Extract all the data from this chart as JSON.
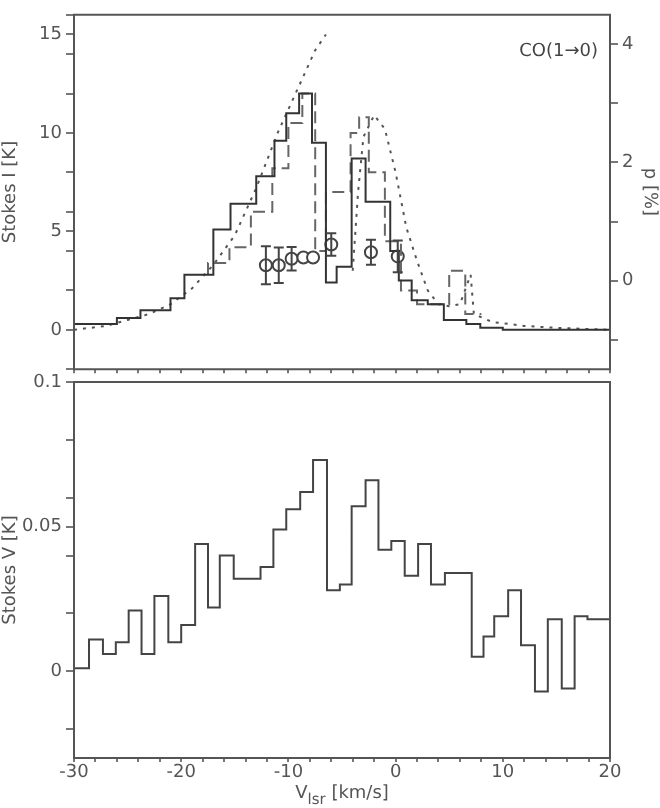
{
  "chart_data": [
    {
      "type": "step",
      "xlim": [
        -30,
        20
      ],
      "xticks": [
        -30,
        {
          "value": -28,
          "label": null
        },
        {
          "value": -26,
          "label": null
        },
        {
          "value": -24,
          "label": null
        },
        {
          "value": -22,
          "label": null
        },
        -20,
        {
          "value": -18,
          "label": null
        },
        {
          "value": -16,
          "label": null
        },
        {
          "value": -14,
          "label": null
        },
        {
          "value": -12,
          "label": null
        },
        -10,
        {
          "value": -8,
          "label": null
        },
        {
          "value": -6,
          "label": null
        },
        {
          "value": -4,
          "label": null
        },
        {
          "value": -2,
          "label": null
        },
        0,
        {
          "value": 2,
          "label": null
        },
        {
          "value": 4,
          "label": null
        },
        {
          "value": 6,
          "label": null
        },
        {
          "value": 8,
          "label": null
        },
        10,
        {
          "value": 12,
          "label": null
        },
        {
          "value": 14,
          "label": null
        },
        {
          "value": 16,
          "label": null
        },
        {
          "value": 18,
          "label": null
        },
        20
      ],
      "ylim": [
        -2,
        16
      ],
      "yticks": [
        {
          "value": -2,
          "label": null
        },
        0,
        {
          "value": 2,
          "label": null
        },
        {
          "value": 4,
          "label": null
        },
        5,
        {
          "value": 6,
          "label": null
        },
        {
          "value": 8,
          "label": null
        },
        10,
        {
          "value": 12,
          "label": null
        },
        {
          "value": 14,
          "label": null
        },
        15,
        {
          "value": 16,
          "label": null
        }
      ],
      "y2lim": [
        -1.5,
        4.5
      ],
      "y2ticks": [
        {
          "value": -1,
          "label": null
        },
        0,
        {
          "value": 1,
          "label": null
        },
        2,
        {
          "value": 3,
          "label": null
        },
        4
      ],
      "ylabel": "Stokes I [K]",
      "y2label": "p [%]",
      "annotations": [
        "CO(1→0)"
      ],
      "tick_labels": "y",
      "legend": false,
      "grid": false,
      "series": [
        {
          "type": "step",
          "color": "#333333",
          "line_style": "solid",
          "x": [
            -30,
            -26,
            -23.8,
            -21,
            -19.7,
            -17,
            -15.4,
            -13,
            -11.3,
            -10.2,
            -9,
            -7.8,
            -6.5,
            -5.5,
            -4.1,
            -2.8,
            -0.5,
            0.3,
            1.5,
            3,
            4.5,
            6.6,
            7.9,
            10,
            14,
            20
          ],
          "values": [
            0,
            0.3,
            0.6,
            1.0,
            1.6,
            2.8,
            5.1,
            6.4,
            7.8,
            9.6,
            11,
            12.0,
            9.5,
            2.4,
            3.2,
            8.7,
            6.5,
            4.0,
            2.5,
            1.5,
            1.3,
            0.5,
            0.3,
            0.1,
            0,
            0
          ]
        },
        {
          "type": "step",
          "color": "#666666",
          "line_style": "dashed",
          "x": [
            -17.5,
            -15.5,
            -13.5,
            -11.5,
            -10,
            -8.7,
            -7.5,
            -6.5,
            -4.2,
            -3.4,
            -2.5,
            -1,
            0.5,
            2,
            3.5,
            5,
            6.5,
            7.3,
            8
          ],
          "values": [
            2.8,
            3.4,
            4.2,
            6.0,
            8.2,
            10.5,
            12.0,
            4.0,
            7.0,
            10.0,
            10.8,
            8.0,
            4.5,
            2.0,
            1.3,
            1.3,
            3.0,
            0.8,
            0.8
          ]
        },
        {
          "type": "line",
          "color": "#555555",
          "line_style": "dotted",
          "x": [
            -30,
            -27,
            -25,
            -23,
            -21,
            -19,
            -17,
            -15,
            -13,
            -11,
            -9,
            -7.5,
            -6.5,
            -5,
            -4,
            -3.5,
            -3,
            -2,
            -1,
            0,
            1,
            2,
            3,
            4,
            5,
            6,
            7,
            7.3,
            9,
            12,
            15,
            20
          ],
          "values": [
            0,
            0.2,
            0.5,
            0.8,
            1.3,
            2.1,
            3.3,
            4.8,
            7.2,
            10,
            12.4,
            14.2,
            15,
            null,
            3,
            7,
            9.8,
            10.9,
            10.2,
            8,
            5.2,
            3.5,
            2,
            1.3,
            1.2,
            1.3,
            2.8,
            0.8,
            0.4,
            0.2,
            0.1,
            0
          ]
        },
        {
          "type": "scatter",
          "axis": "y2",
          "color": "#444444",
          "marker": "circle",
          "x": [
            -12.1,
            -10.9,
            -9.7,
            -8.6,
            -7.7,
            -6.0,
            -2.3,
            0.2
          ],
          "values": [
            0.26,
            0.26,
            0.37,
            0.39,
            0.39,
            0.61,
            0.48,
            0.41
          ],
          "errors": [
            0.32,
            0.3,
            0.2,
            null,
            null,
            0.19,
            0.21,
            0.27
          ]
        }
      ]
    },
    {
      "type": "step",
      "xlim": [
        -30,
        20
      ],
      "xticks": [
        -30,
        {
          "value": -28,
          "label": null
        },
        {
          "value": -26,
          "label": null
        },
        {
          "value": -24,
          "label": null
        },
        {
          "value": -22,
          "label": null
        },
        -20,
        {
          "value": -18,
          "label": null
        },
        {
          "value": -16,
          "label": null
        },
        {
          "value": -14,
          "label": null
        },
        {
          "value": -12,
          "label": null
        },
        -10,
        {
          "value": -8,
          "label": null
        },
        {
          "value": -6,
          "label": null
        },
        {
          "value": -4,
          "label": null
        },
        {
          "value": -2,
          "label": null
        },
        0,
        {
          "value": 2,
          "label": null
        },
        {
          "value": 4,
          "label": null
        },
        {
          "value": 6,
          "label": null
        },
        {
          "value": 8,
          "label": null
        },
        10,
        {
          "value": 12,
          "label": null
        },
        {
          "value": 14,
          "label": null
        },
        {
          "value": 16,
          "label": null
        },
        {
          "value": 18,
          "label": null
        },
        20
      ],
      "ylim": [
        -0.03,
        0.1
      ],
      "yticks": [
        {
          "value": -0.02,
          "label": null
        },
        0,
        {
          "value": 0.02,
          "label": null
        },
        {
          "value": 0.04,
          "label": null
        },
        0.05,
        {
          "value": 0.06,
          "label": null
        },
        {
          "value": 0.08,
          "label": null
        },
        0.1
      ],
      "ylabel": "Stokes V [K]",
      "xlabel": "V$_{lsr}$ [km/s]",
      "legend": false,
      "grid": false,
      "series": [
        {
          "type": "step",
          "color": "#444444",
          "line_style": "solid",
          "x": [
            -30,
            -28.6,
            -27.3,
            -26.1,
            -24.9,
            -23.7,
            -22.5,
            -21.2,
            -20.0,
            -18.7,
            -17.5,
            -16.4,
            -15.1,
            -13.9,
            -12.6,
            -11.4,
            -10.2,
            -8.9,
            -7.7,
            -6.4,
            -5.2,
            -4.1,
            -2.8,
            -1.6,
            -0.4,
            0.85,
            2.1,
            3.3,
            4.6,
            5.8,
            7.1,
            8.2,
            9.2,
            10.5,
            11.7,
            13.0,
            14.2,
            15.5,
            16.7,
            17.9,
            19.2,
            20
          ],
          "values": [
            0.013,
            0.001,
            0.011,
            0.006,
            0.01,
            0.021,
            0.006,
            0.026,
            0.01,
            0.016,
            0.044,
            0.022,
            0.04,
            0.032,
            0.032,
            0.036,
            0.049,
            0.056,
            0.062,
            0.073,
            0.028,
            0.03,
            0.057,
            0.066,
            0.042,
            0.045,
            0.033,
            0.044,
            0.03,
            0.034,
            0.034,
            0.005,
            0.012,
            0.019,
            0.028,
            0.009,
            -0.007,
            0.018,
            -0.006,
            0.019,
            0.018,
            0.018
          ]
        }
      ]
    }
  ]
}
